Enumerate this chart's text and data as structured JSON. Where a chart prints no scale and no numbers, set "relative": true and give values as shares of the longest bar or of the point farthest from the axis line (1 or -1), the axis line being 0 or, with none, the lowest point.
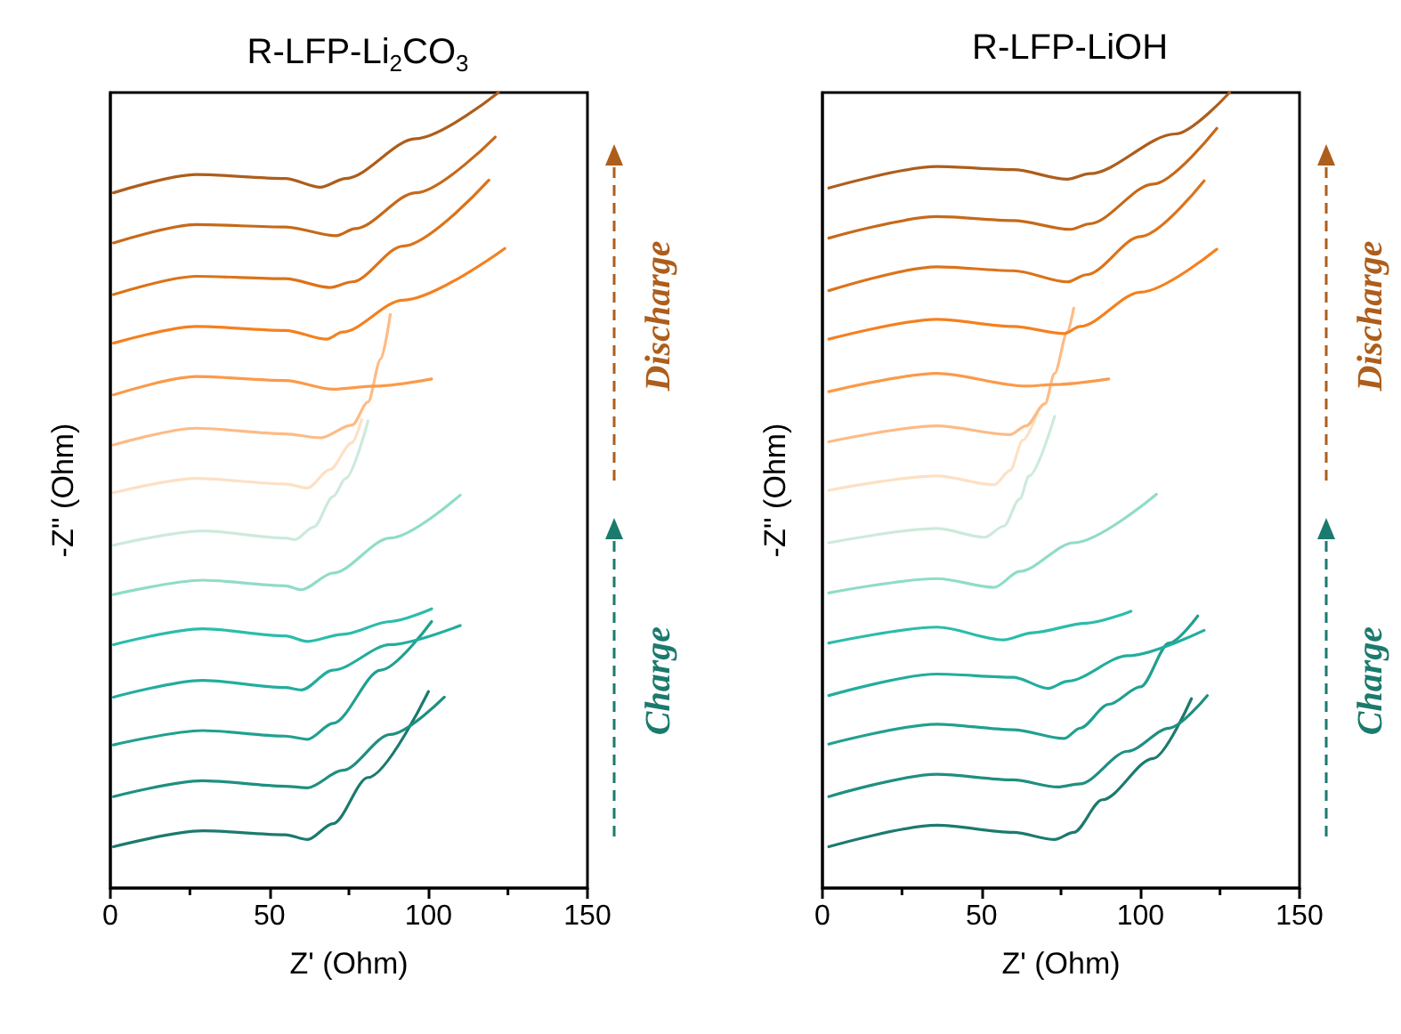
{
  "chart_data": [
    {
      "type": "line",
      "title": "R-LFP-Li$_{2}$CO$_{3}$",
      "xlabel": "Z' (Ohm)",
      "ylabel": "-Z'' (Ohm)",
      "relative": true,
      "xlim": [
        0,
        150
      ],
      "xticks": [
        0,
        50,
        100,
        150
      ],
      "tick_labels": "x",
      "grid": false,
      "legend": false,
      "marker": "none",
      "line_style": "solid",
      "annotations": [
        "Discharge",
        "Charge"
      ],
      "series": [
        {
          "color": "#1b7a6e",
          "x": [
            1,
            29,
            55,
            62,
            70,
            81,
            100
          ],
          "values": [
            0.052,
            0.072,
            0.067,
            0.061,
            0.081,
            0.139,
            0.247
          ]
        },
        {
          "color": "#1e8f80",
          "x": [
            1,
            29,
            55,
            62,
            73,
            88,
            105
          ],
          "values": [
            0.115,
            0.135,
            0.128,
            0.126,
            0.148,
            0.193,
            0.24
          ]
        },
        {
          "color": "#20a090",
          "x": [
            1,
            29,
            55,
            62,
            70,
            85,
            101
          ],
          "values": [
            0.18,
            0.198,
            0.191,
            0.187,
            0.207,
            0.274,
            0.335
          ]
        },
        {
          "color": "#22ad9e",
          "x": [
            1,
            29,
            55,
            60,
            70,
            88,
            110
          ],
          "values": [
            0.24,
            0.261,
            0.252,
            0.249,
            0.274,
            0.306,
            0.33
          ]
        },
        {
          "color": "#2bbcab",
          "x": [
            1,
            29,
            55,
            62,
            73,
            88,
            101
          ],
          "values": [
            0.306,
            0.326,
            0.317,
            0.31,
            0.319,
            0.335,
            0.351
          ]
        },
        {
          "color": "#8fdcc8",
          "x": [
            1,
            29,
            55,
            60,
            70,
            88,
            110
          ],
          "values": [
            0.369,
            0.387,
            0.38,
            0.375,
            0.396,
            0.44,
            0.494
          ]
        },
        {
          "color": "#cdeadb",
          "x": [
            1,
            29,
            55,
            58,
            64,
            70,
            74,
            81
          ],
          "values": [
            0.431,
            0.449,
            0.44,
            0.438,
            0.454,
            0.492,
            0.515,
            0.587
          ]
        },
        {
          "color": "#fde0c4",
          "x": [
            1,
            27,
            55,
            62,
            69,
            76,
            79
          ],
          "values": [
            0.497,
            0.515,
            0.508,
            0.503,
            0.526,
            0.56,
            0.589
          ]
        },
        {
          "color": "#fdbb85",
          "x": [
            1,
            27,
            55,
            66,
            76,
            81,
            85,
            88
          ],
          "values": [
            0.557,
            0.578,
            0.571,
            0.566,
            0.582,
            0.611,
            0.665,
            0.721
          ]
        },
        {
          "color": "#fb9a4a",
          "x": [
            1,
            27,
            55,
            70,
            83,
            101
          ],
          "values": [
            0.62,
            0.643,
            0.638,
            0.627,
            0.631,
            0.64
          ]
        },
        {
          "color": "#f5801f",
          "x": [
            1,
            27,
            55,
            68,
            73,
            92,
            124
          ],
          "values": [
            0.685,
            0.706,
            0.701,
            0.69,
            0.699,
            0.739,
            0.804
          ]
        },
        {
          "color": "#dc7319",
          "x": [
            1,
            27,
            55,
            69,
            76,
            92,
            119
          ],
          "values": [
            0.746,
            0.769,
            0.766,
            0.755,
            0.762,
            0.807,
            0.89
          ]
        },
        {
          "color": "#c6691a",
          "x": [
            1,
            27,
            55,
            71,
            77,
            96,
            121
          ],
          "values": [
            0.811,
            0.834,
            0.831,
            0.82,
            0.829,
            0.874,
            0.944
          ]
        },
        {
          "color": "#ad5e1c",
          "x": [
            1,
            27,
            55,
            66,
            74,
            96,
            122
          ],
          "values": [
            0.874,
            0.897,
            0.892,
            0.881,
            0.892,
            0.942,
            1.0
          ]
        }
      ]
    },
    {
      "type": "line",
      "title": "R-LFP-LiOH",
      "xlabel": "Z' (Ohm)",
      "ylabel": "-Z'' (Ohm)",
      "relative": true,
      "xlim": [
        0,
        150
      ],
      "xticks": [
        0,
        50,
        100,
        150
      ],
      "tick_labels": "x",
      "grid": false,
      "legend": false,
      "marker": "none",
      "line_style": "solid",
      "annotations": [
        "Discharge",
        "Charge"
      ],
      "series": [
        {
          "color": "#1b7a6e",
          "x": [
            2,
            36,
            60,
            73,
            79,
            88,
            104,
            116
          ],
          "values": [
            0.052,
            0.079,
            0.07,
            0.061,
            0.07,
            0.111,
            0.163,
            0.238
          ]
        },
        {
          "color": "#1e8f80",
          "x": [
            2,
            36,
            60,
            74,
            81,
            96,
            109,
            121
          ],
          "values": [
            0.115,
            0.143,
            0.136,
            0.127,
            0.131,
            0.172,
            0.201,
            0.242
          ]
        },
        {
          "color": "#20a090",
          "x": [
            2,
            36,
            60,
            76,
            81,
            90,
            100,
            109,
            118
          ],
          "values": [
            0.181,
            0.206,
            0.199,
            0.188,
            0.201,
            0.231,
            0.253,
            0.308,
            0.342
          ]
        },
        {
          "color": "#22ad9e",
          "x": [
            2,
            36,
            60,
            71,
            77,
            96,
            120
          ],
          "values": [
            0.242,
            0.269,
            0.265,
            0.251,
            0.26,
            0.292,
            0.324
          ]
        },
        {
          "color": "#2bbcab",
          "x": [
            2,
            36,
            57,
            66,
            83,
            97
          ],
          "values": [
            0.308,
            0.328,
            0.312,
            0.321,
            0.333,
            0.348
          ]
        },
        {
          "color": "#8fdcc8",
          "x": [
            2,
            36,
            54,
            62,
            79,
            105
          ],
          "values": [
            0.371,
            0.389,
            0.378,
            0.398,
            0.434,
            0.495
          ]
        },
        {
          "color": "#cdeadb",
          "x": [
            2,
            36,
            51,
            57,
            62,
            65,
            73
          ],
          "values": [
            0.434,
            0.452,
            0.441,
            0.455,
            0.489,
            0.518,
            0.593
          ]
        },
        {
          "color": "#fde0c4",
          "x": [
            2,
            36,
            54,
            59,
            63,
            68
          ],
          "values": [
            0.5,
            0.518,
            0.507,
            0.525,
            0.563,
            0.602
          ]
        },
        {
          "color": "#fdbb85",
          "x": [
            2,
            36,
            59,
            64,
            70,
            73,
            77,
            79
          ],
          "values": [
            0.561,
            0.581,
            0.57,
            0.581,
            0.609,
            0.647,
            0.699,
            0.729
          ]
        },
        {
          "color": "#fb9a4a",
          "x": [
            2,
            36,
            64,
            73,
            90
          ],
          "values": [
            0.624,
            0.647,
            0.631,
            0.633,
            0.64
          ]
        },
        {
          "color": "#f5801f",
          "x": [
            2,
            36,
            60,
            76,
            81,
            100,
            124
          ],
          "values": [
            0.69,
            0.715,
            0.706,
            0.697,
            0.706,
            0.749,
            0.803
          ]
        },
        {
          "color": "#dc7319",
          "x": [
            2,
            36,
            60,
            77,
            83,
            100,
            120
          ],
          "values": [
            0.751,
            0.781,
            0.776,
            0.762,
            0.771,
            0.819,
            0.889
          ]
        },
        {
          "color": "#c6691a",
          "x": [
            2,
            36,
            60,
            78,
            84,
            104,
            124
          ],
          "values": [
            0.817,
            0.844,
            0.839,
            0.828,
            0.835,
            0.885,
            0.955
          ]
        },
        {
          "color": "#ad5e1c",
          "x": [
            2,
            36,
            60,
            77,
            84,
            111,
            128
          ],
          "values": [
            0.88,
            0.907,
            0.903,
            0.891,
            0.898,
            0.948,
            1.0
          ]
        }
      ]
    }
  ]
}
